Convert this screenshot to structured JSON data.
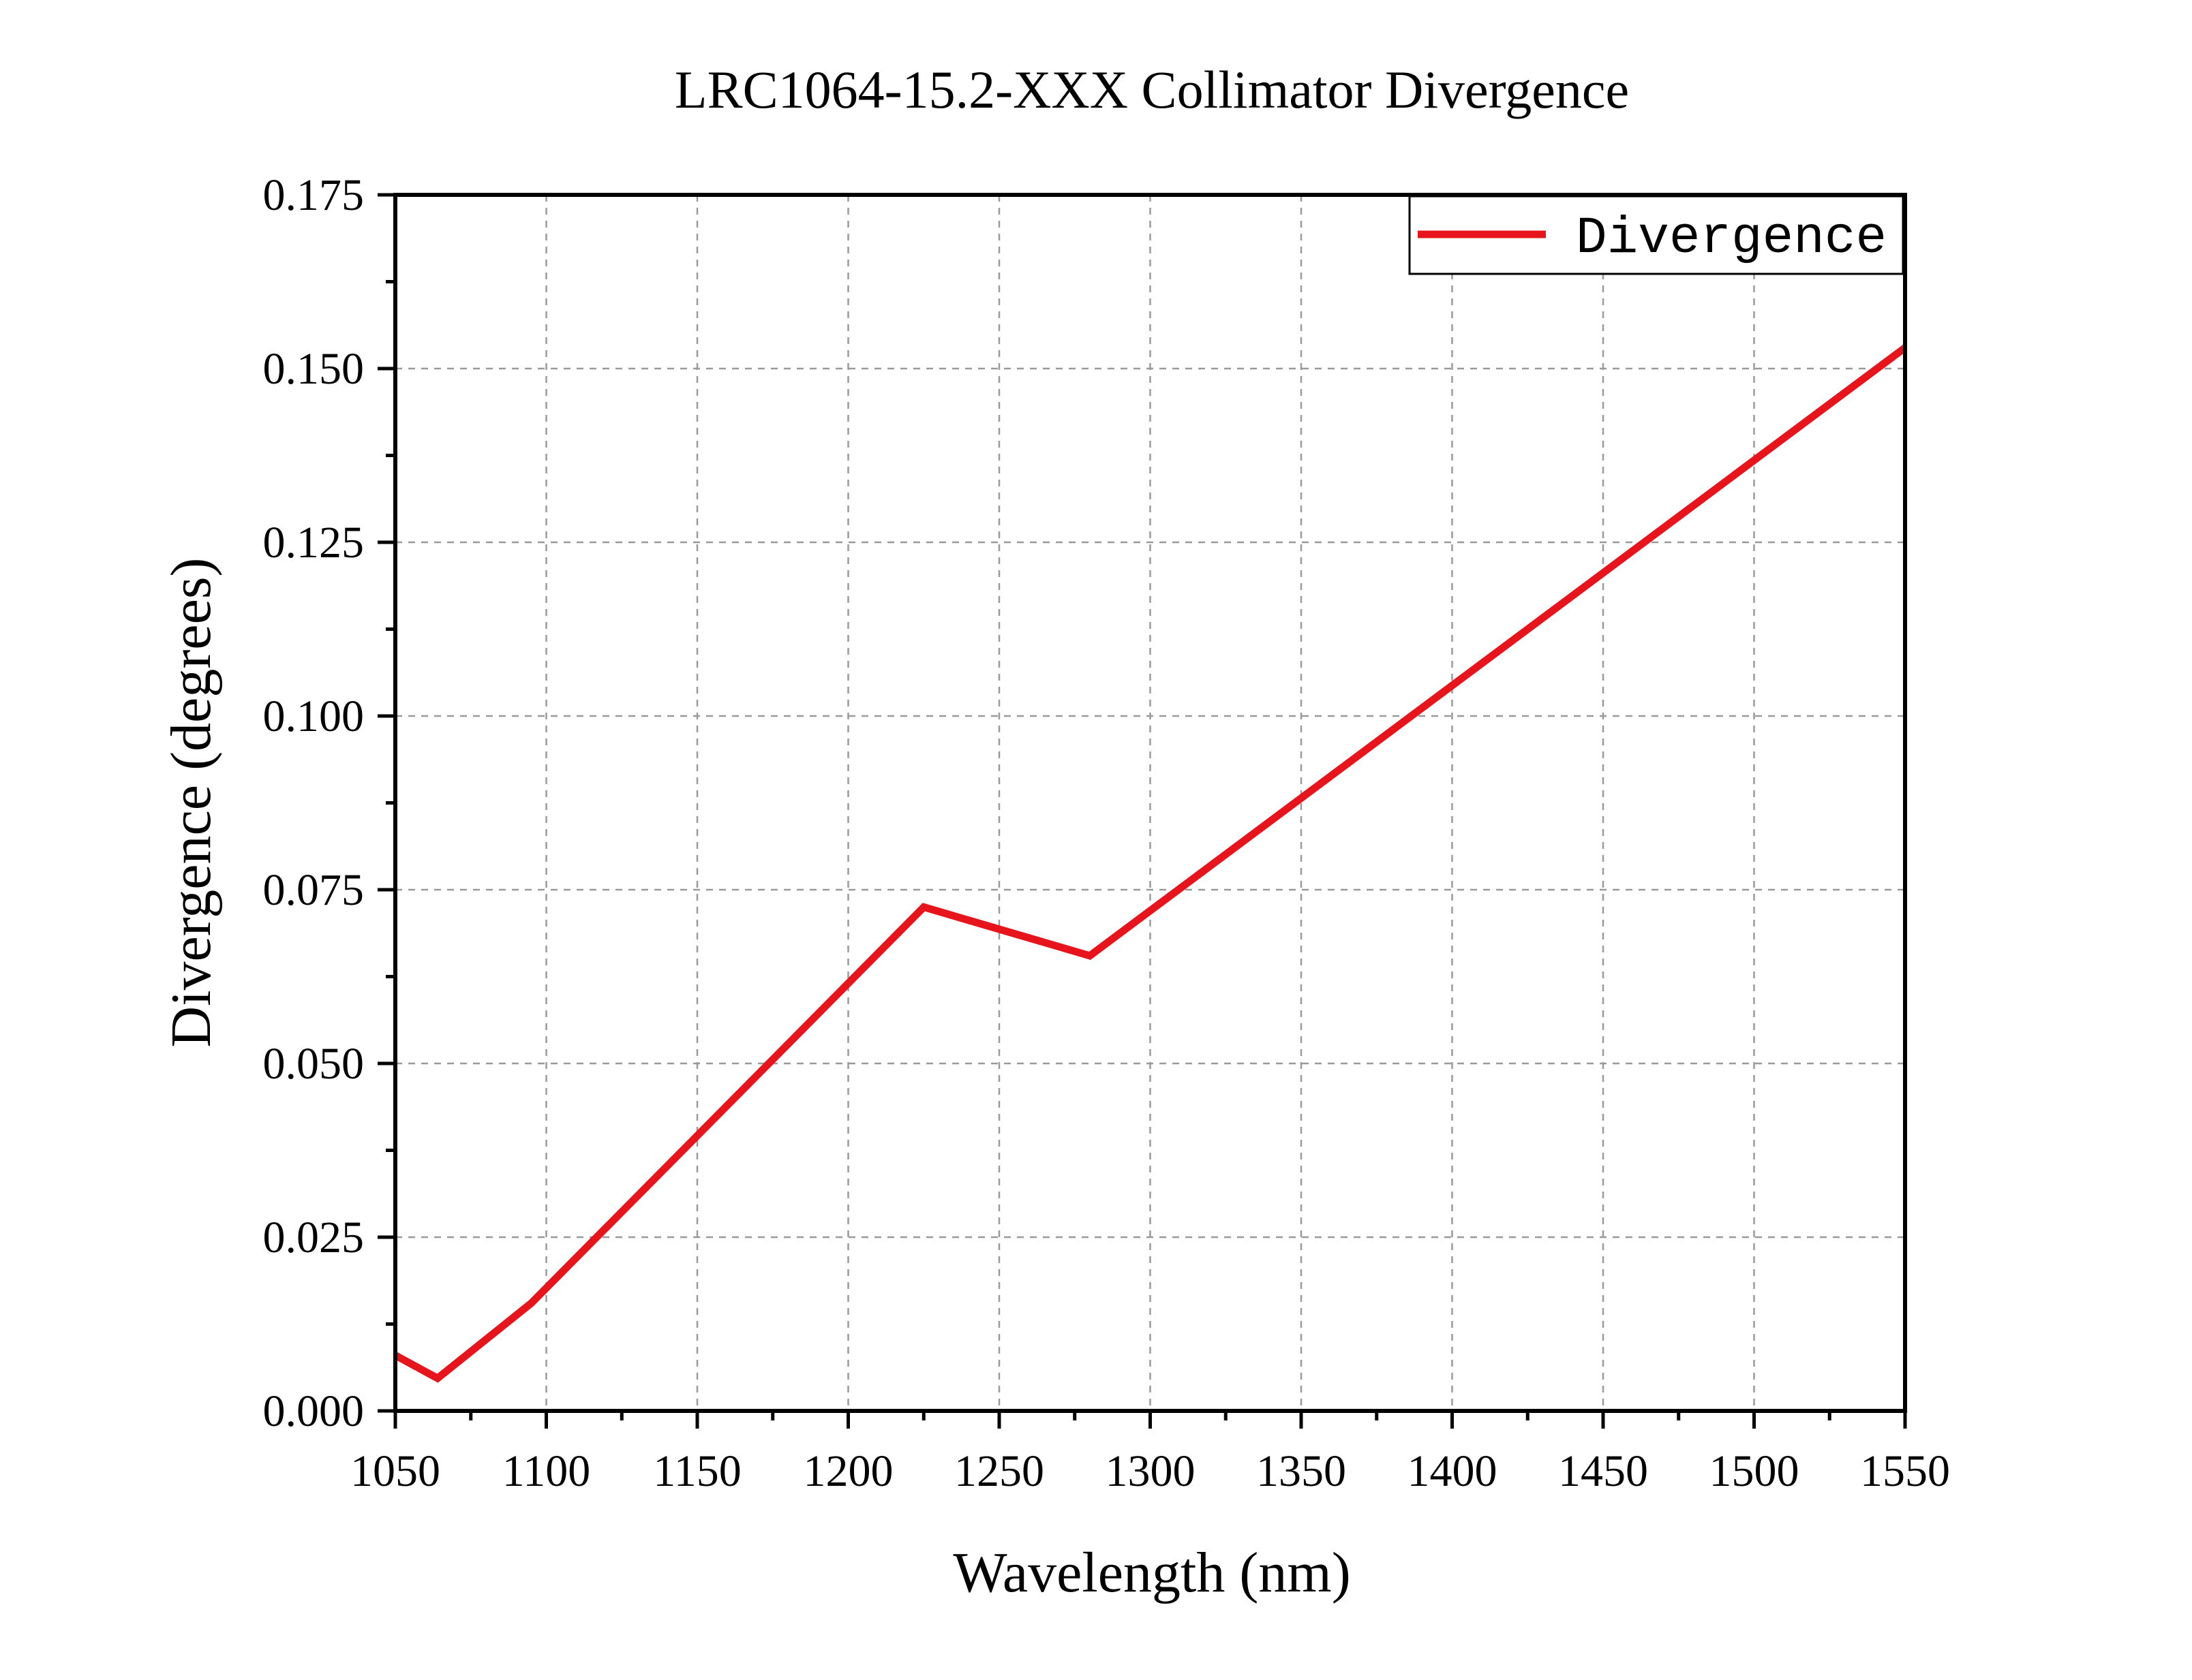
{
  "chart_data": {
    "type": "line",
    "title": "LRC1064-15.2-XXX Collimator Divergence",
    "xlabel": "Wavelength (nm)",
    "ylabel": "Divergence (degrees)",
    "xlim": [
      1050,
      1550
    ],
    "ylim": [
      0,
      0.175
    ],
    "x_ticks": [
      "1050",
      "1100",
      "1150",
      "1200",
      "1250",
      "1300",
      "1350",
      "1400",
      "1450",
      "1500",
      "1550"
    ],
    "y_ticks": [
      "0.000",
      "0.025",
      "0.050",
      "0.075",
      "0.100",
      "0.125",
      "0.150",
      "0.175"
    ],
    "grid": true,
    "legend_position": "top-right",
    "series": [
      {
        "name": "Divergence",
        "color": "#e8141b",
        "x": [
          1050,
          1064,
          1095,
          1225,
          1280,
          1550
        ],
        "y": [
          0.008,
          0.0047,
          0.0155,
          0.0725,
          0.0655,
          0.153
        ]
      }
    ]
  }
}
